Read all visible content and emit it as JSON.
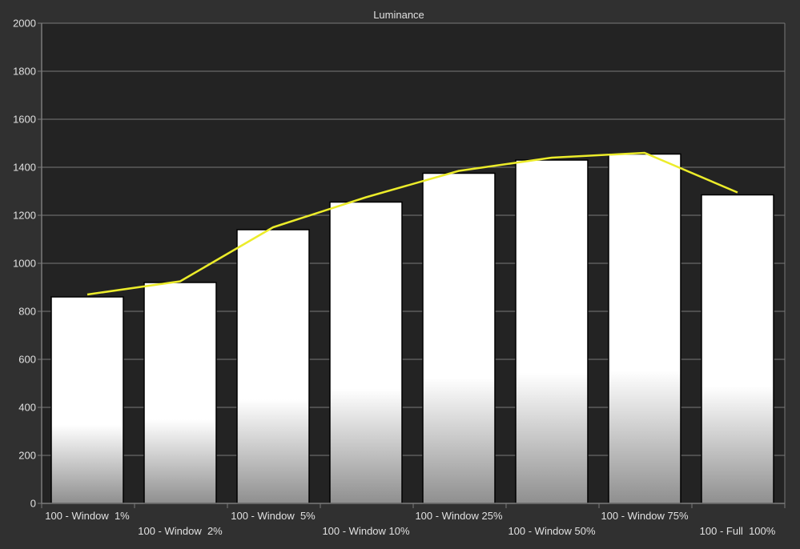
{
  "chart_data": {
    "type": "bar",
    "title": "Luminance",
    "categories": [
      "100 - Window  1%",
      "100 - Window  2%",
      "100 - Window  5%",
      "100 - Window 10%",
      "100 - Window 25%",
      "100 - Window 50%",
      "100 - Window 75%",
      "100 - Full  100%"
    ],
    "series": [
      {
        "type": "bar",
        "values": [
          860,
          920,
          1140,
          1255,
          1375,
          1430,
          1455,
          1285
        ]
      },
      {
        "type": "line",
        "values": [
          870,
          925,
          1150,
          1275,
          1385,
          1440,
          1460,
          1295
        ]
      }
    ],
    "ylim": [
      0,
      2000
    ],
    "yticks": [
      0,
      200,
      400,
      600,
      800,
      1000,
      1200,
      1400,
      1600,
      1800,
      2000
    ],
    "grid": true,
    "colors": {
      "page_background": "#303030",
      "plot_background": "#232323",
      "grid": "#7a7a7a",
      "axis_text": "#e0e0e0",
      "bar_top": "#ffffff",
      "bar_bottom": "#8f8f8f",
      "bar_outline": "#000000",
      "line": "#ecec2a"
    }
  }
}
